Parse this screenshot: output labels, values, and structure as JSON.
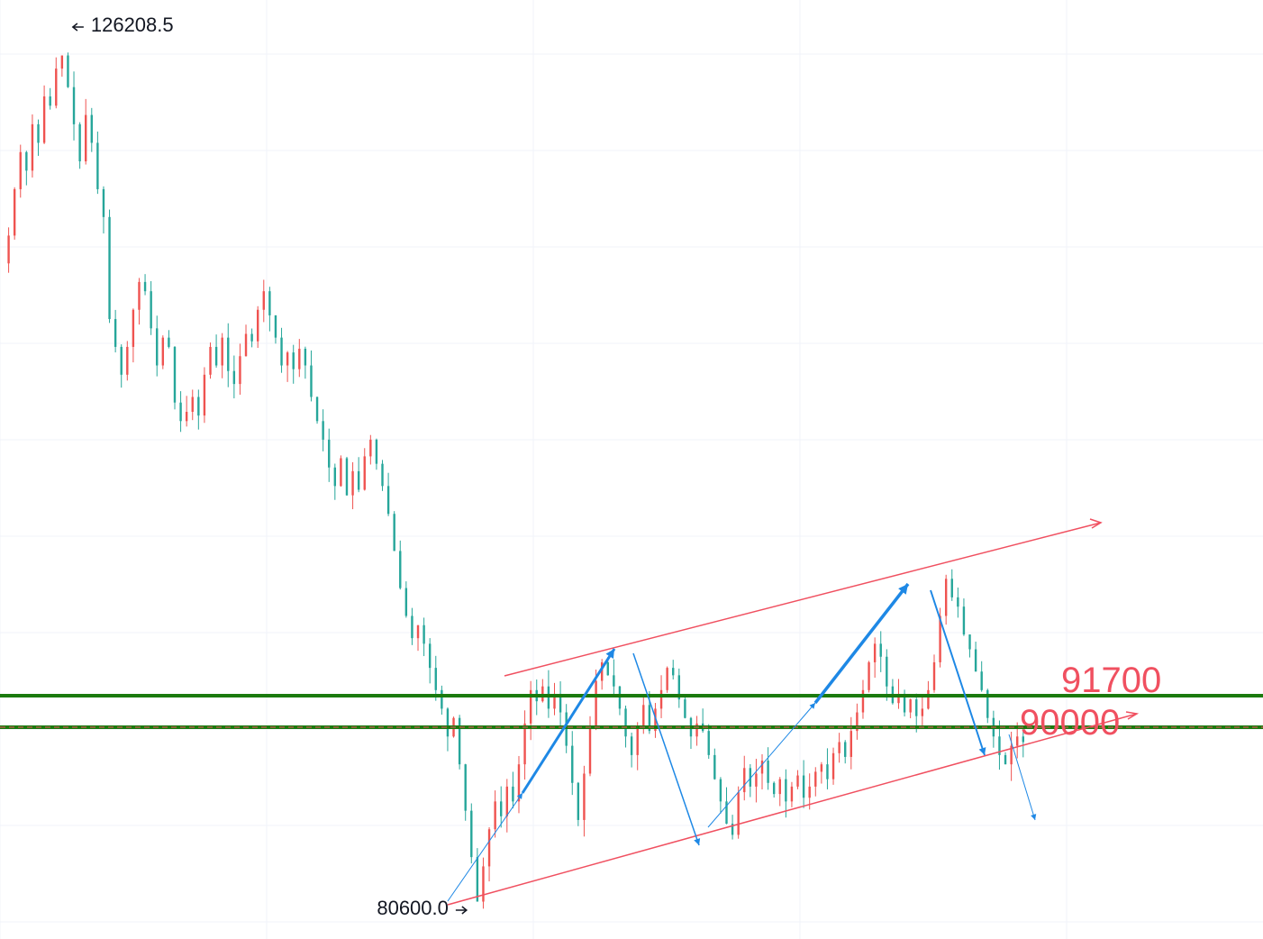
{
  "chart_data": {
    "type": "candlestick",
    "title": "",
    "xlabel": "",
    "ylabel": "",
    "grid": true,
    "colors": {
      "up": "#ef5350",
      "down": "#26a69a",
      "channel": "#f05060",
      "trend_arrow": "#1e88e5",
      "level_line": "#1b7a0e",
      "level_text": "#f05060",
      "grid": "#f0f3fa"
    },
    "annotations": {
      "high_label": "126208.5",
      "low_label": "80600.0",
      "high_arrow_icon": "arrow-left-icon",
      "low_arrow_icon": "arrow-right-icon"
    },
    "levels": [
      {
        "value": 91700,
        "label": "91700"
      },
      {
        "value": 90000,
        "label": "90000"
      }
    ],
    "price_path": [
      115000,
      116500,
      119000,
      121000,
      120000,
      122500,
      121500,
      124000,
      123500,
      125500,
      126208.5,
      124500,
      122500,
      120500,
      123000,
      121500,
      119000,
      117500,
      112000,
      110500,
      109000,
      110500,
      112500,
      114000,
      113500,
      111500,
      109500,
      111000,
      110500,
      107500,
      106500,
      107000,
      107800,
      106800,
      109000,
      110500,
      109500,
      111000,
      109200,
      108500,
      110000,
      111200,
      110800,
      112500,
      113500,
      112200,
      111000,
      109500,
      110200,
      109300,
      110400,
      109500,
      107800,
      106500,
      105500,
      104000,
      103000,
      104500,
      102500,
      103800,
      102800,
      104600,
      105500,
      104200,
      103000,
      101500,
      99500,
      97500,
      96000,
      94800,
      95500,
      94500,
      93200,
      92000,
      91000,
      89500,
      90500,
      88000,
      85500,
      83000,
      80600,
      82500,
      84500,
      86000,
      85200,
      86800,
      86000,
      88000,
      90200,
      92000,
      91400,
      92200,
      91000,
      91800,
      90800,
      89000,
      87000,
      85000,
      87500,
      90000,
      92500,
      93500,
      92800,
      92200,
      91000,
      89500,
      88500,
      90000,
      91200,
      89800,
      91000,
      92000,
      93200,
      92800,
      91500,
      90500,
      89500,
      90200,
      89800,
      88500,
      87200,
      86000,
      84800,
      84200,
      86500,
      87800,
      86800,
      87500,
      88200,
      87000,
      86400,
      87200,
      86000,
      86800,
      87400,
      86200,
      86800,
      87600,
      88000,
      87200,
      88600,
      89200,
      88400,
      89800,
      90800,
      92000,
      93500,
      94500,
      93800,
      92200,
      91300,
      91800,
      90800,
      91500,
      90600,
      91000,
      92000,
      93500,
      96000,
      98000,
      97000,
      96500,
      95000,
      94200,
      93000,
      92000,
      90500,
      89500,
      88500,
      88000,
      89000,
      89500,
      89200
    ]
  }
}
